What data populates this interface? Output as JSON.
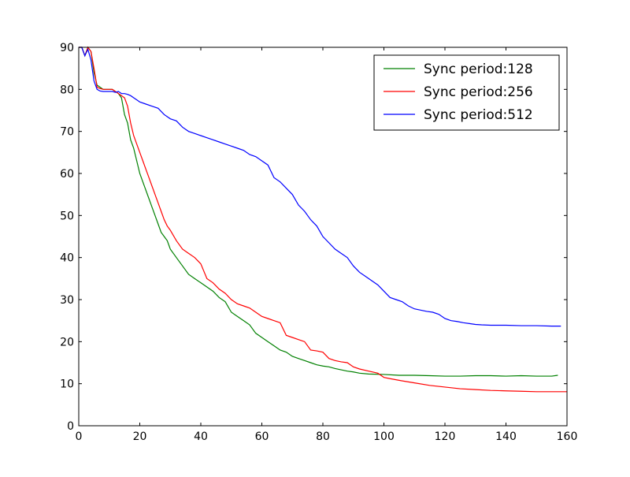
{
  "chart_data": {
    "type": "line",
    "title": "",
    "xlabel": "",
    "ylabel": "",
    "xlim": [
      0,
      160
    ],
    "ylim": [
      0,
      90
    ],
    "xticks": [
      0,
      20,
      40,
      60,
      80,
      100,
      120,
      140,
      160
    ],
    "yticks": [
      0,
      10,
      20,
      30,
      40,
      50,
      60,
      70,
      80,
      90
    ],
    "grid": false,
    "legend_position": "top-right",
    "series": [
      {
        "name": "Sync period:128",
        "color": "#008000",
        "points": [
          [
            0,
            90
          ],
          [
            1,
            90
          ],
          [
            2,
            88
          ],
          [
            3,
            90
          ],
          [
            4,
            89
          ],
          [
            5,
            84
          ],
          [
            6,
            81
          ],
          [
            7,
            80.5
          ],
          [
            8,
            80
          ],
          [
            9,
            80
          ],
          [
            10,
            80
          ],
          [
            11,
            80
          ],
          [
            12,
            79.5
          ],
          [
            13,
            79
          ],
          [
            14,
            78
          ],
          [
            15,
            74
          ],
          [
            16,
            72
          ],
          [
            17,
            68
          ],
          [
            18,
            66
          ],
          [
            19,
            63
          ],
          [
            20,
            60
          ],
          [
            21,
            58
          ],
          [
            22,
            56
          ],
          [
            23,
            54
          ],
          [
            24,
            52
          ],
          [
            25,
            50
          ],
          [
            26,
            48
          ],
          [
            27,
            46
          ],
          [
            28,
            45
          ],
          [
            29,
            44
          ],
          [
            30,
            42
          ],
          [
            32,
            40
          ],
          [
            34,
            38
          ],
          [
            36,
            36
          ],
          [
            38,
            35
          ],
          [
            40,
            34
          ],
          [
            42,
            33
          ],
          [
            44,
            32
          ],
          [
            46,
            30.5
          ],
          [
            48,
            29.5
          ],
          [
            50,
            27
          ],
          [
            52,
            26
          ],
          [
            54,
            25
          ],
          [
            56,
            24
          ],
          [
            58,
            22
          ],
          [
            60,
            21
          ],
          [
            62,
            20
          ],
          [
            64,
            19
          ],
          [
            66,
            18
          ],
          [
            68,
            17.5
          ],
          [
            70,
            16.5
          ],
          [
            72,
            16
          ],
          [
            74,
            15.5
          ],
          [
            76,
            15
          ],
          [
            78,
            14.5
          ],
          [
            80,
            14.2
          ],
          [
            82,
            14
          ],
          [
            84,
            13.6
          ],
          [
            86,
            13.3
          ],
          [
            88,
            13
          ],
          [
            90,
            12.8
          ],
          [
            92,
            12.5
          ],
          [
            95,
            12.3
          ],
          [
            100,
            12.2
          ],
          [
            105,
            12
          ],
          [
            110,
            12
          ],
          [
            115,
            11.9
          ],
          [
            120,
            11.8
          ],
          [
            125,
            11.8
          ],
          [
            130,
            11.9
          ],
          [
            135,
            11.9
          ],
          [
            140,
            11.8
          ],
          [
            145,
            11.9
          ],
          [
            150,
            11.8
          ],
          [
            155,
            11.8
          ],
          [
            157,
            12
          ]
        ]
      },
      {
        "name": "Sync period:256",
        "color": "#ff0000",
        "points": [
          [
            0,
            90
          ],
          [
            1,
            90
          ],
          [
            2,
            88
          ],
          [
            3,
            90
          ],
          [
            4,
            89
          ],
          [
            5,
            85
          ],
          [
            6,
            80.5
          ],
          [
            7,
            80.2
          ],
          [
            8,
            80
          ],
          [
            9,
            80
          ],
          [
            10,
            80
          ],
          [
            11,
            80
          ],
          [
            12,
            79.5
          ],
          [
            13,
            79
          ],
          [
            14,
            78.5
          ],
          [
            15,
            78
          ],
          [
            16,
            76
          ],
          [
            17,
            72
          ],
          [
            18,
            69
          ],
          [
            19,
            67
          ],
          [
            20,
            65
          ],
          [
            21,
            63
          ],
          [
            22,
            61
          ],
          [
            23,
            59
          ],
          [
            24,
            57
          ],
          [
            25,
            55
          ],
          [
            26,
            53
          ],
          [
            27,
            51
          ],
          [
            28,
            49
          ],
          [
            29,
            47.5
          ],
          [
            30,
            46.5
          ],
          [
            32,
            44
          ],
          [
            34,
            42
          ],
          [
            36,
            41
          ],
          [
            38,
            40
          ],
          [
            40,
            38.5
          ],
          [
            42,
            35
          ],
          [
            44,
            34
          ],
          [
            46,
            32.5
          ],
          [
            48,
            31.5
          ],
          [
            50,
            30
          ],
          [
            52,
            29
          ],
          [
            54,
            28.5
          ],
          [
            56,
            28
          ],
          [
            58,
            27
          ],
          [
            60,
            26
          ],
          [
            62,
            25.5
          ],
          [
            64,
            25
          ],
          [
            66,
            24.5
          ],
          [
            68,
            21.5
          ],
          [
            70,
            21
          ],
          [
            72,
            20.5
          ],
          [
            74,
            20
          ],
          [
            76,
            18
          ],
          [
            78,
            17.8
          ],
          [
            80,
            17.5
          ],
          [
            82,
            16
          ],
          [
            84,
            15.5
          ],
          [
            86,
            15.2
          ],
          [
            88,
            15
          ],
          [
            90,
            14
          ],
          [
            92,
            13.5
          ],
          [
            95,
            13
          ],
          [
            98,
            12.5
          ],
          [
            100,
            11.5
          ],
          [
            102,
            11.2
          ],
          [
            105,
            10.8
          ],
          [
            110,
            10.2
          ],
          [
            115,
            9.6
          ],
          [
            120,
            9.2
          ],
          [
            125,
            8.8
          ],
          [
            130,
            8.6
          ],
          [
            135,
            8.4
          ],
          [
            140,
            8.3
          ],
          [
            145,
            8.2
          ],
          [
            150,
            8.1
          ],
          [
            155,
            8.1
          ],
          [
            160,
            8.1
          ]
        ]
      },
      {
        "name": "Sync period:512",
        "color": "#0000ff",
        "points": [
          [
            0,
            90
          ],
          [
            1,
            90
          ],
          [
            2,
            88
          ],
          [
            3,
            89.5
          ],
          [
            4,
            87
          ],
          [
            5,
            82
          ],
          [
            6,
            80
          ],
          [
            7,
            79.6
          ],
          [
            8,
            79.5
          ],
          [
            9,
            79.5
          ],
          [
            10,
            79.5
          ],
          [
            11,
            79.5
          ],
          [
            12,
            79.3
          ],
          [
            13,
            79.5
          ],
          [
            14,
            79
          ],
          [
            15,
            79
          ],
          [
            16,
            78.8
          ],
          [
            17,
            78.5
          ],
          [
            18,
            78
          ],
          [
            19,
            77.5
          ],
          [
            20,
            77
          ],
          [
            22,
            76.5
          ],
          [
            24,
            76
          ],
          [
            26,
            75.5
          ],
          [
            28,
            74
          ],
          [
            30,
            73
          ],
          [
            32,
            72.5
          ],
          [
            34,
            71
          ],
          [
            36,
            70
          ],
          [
            38,
            69.5
          ],
          [
            40,
            69
          ],
          [
            42,
            68.5
          ],
          [
            44,
            68
          ],
          [
            46,
            67.5
          ],
          [
            48,
            67
          ],
          [
            50,
            66.5
          ],
          [
            52,
            66
          ],
          [
            54,
            65.5
          ],
          [
            56,
            64.5
          ],
          [
            58,
            64
          ],
          [
            60,
            63
          ],
          [
            62,
            62
          ],
          [
            64,
            59
          ],
          [
            66,
            58
          ],
          [
            68,
            56.5
          ],
          [
            70,
            55
          ],
          [
            72,
            52.5
          ],
          [
            74,
            51
          ],
          [
            76,
            49
          ],
          [
            78,
            47.5
          ],
          [
            80,
            45
          ],
          [
            82,
            43.5
          ],
          [
            84,
            42
          ],
          [
            86,
            41
          ],
          [
            88,
            40
          ],
          [
            90,
            38
          ],
          [
            92,
            36.5
          ],
          [
            94,
            35.5
          ],
          [
            96,
            34.5
          ],
          [
            98,
            33.5
          ],
          [
            100,
            32
          ],
          [
            102,
            30.5
          ],
          [
            104,
            30
          ],
          [
            106,
            29.5
          ],
          [
            108,
            28.5
          ],
          [
            110,
            27.8
          ],
          [
            112,
            27.5
          ],
          [
            114,
            27.2
          ],
          [
            116,
            27
          ],
          [
            118,
            26.5
          ],
          [
            120,
            25.5
          ],
          [
            122,
            25
          ],
          [
            124,
            24.8
          ],
          [
            126,
            24.5
          ],
          [
            128,
            24.3
          ],
          [
            130,
            24.1
          ],
          [
            132,
            24
          ],
          [
            135,
            23.9
          ],
          [
            140,
            23.9
          ],
          [
            145,
            23.8
          ],
          [
            150,
            23.8
          ],
          [
            155,
            23.7
          ],
          [
            158,
            23.7
          ]
        ]
      }
    ]
  }
}
